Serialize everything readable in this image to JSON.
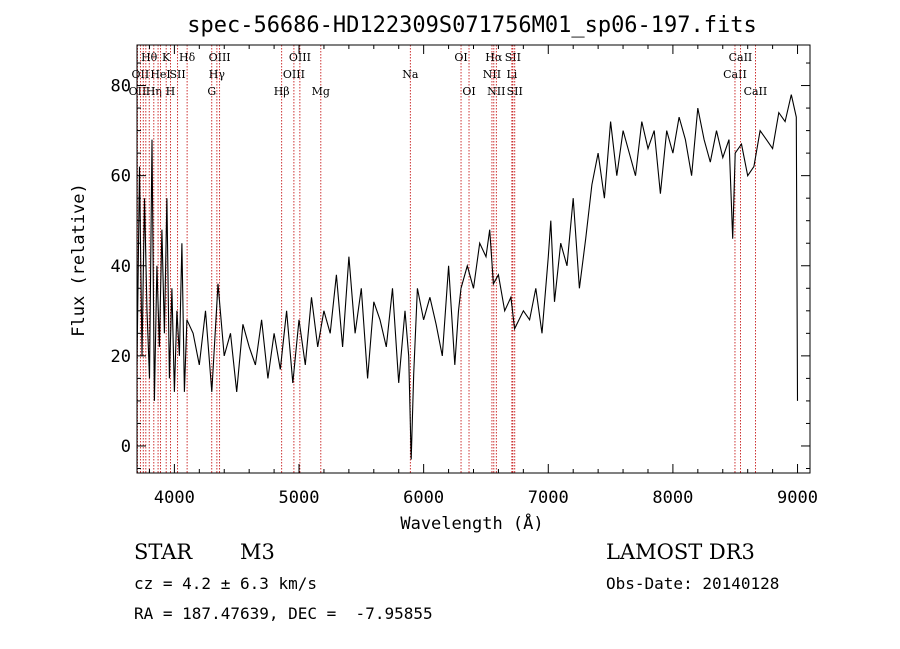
{
  "chart_data": {
    "type": "line",
    "title": "spec-56686-HD122309S071756M01_sp06-197.fits",
    "xlabel": "Wavelength (Å)",
    "ylabel": "Flux (relative)",
    "xlim": [
      3700,
      9100
    ],
    "ylim": [
      -6,
      89
    ],
    "xticks": [
      4000,
      5000,
      6000,
      7000,
      8000,
      9000
    ],
    "yticks": [
      0,
      20,
      40,
      60,
      80
    ],
    "line_color": "#000000",
    "marker_color": "#c00000",
    "series": [
      {
        "x": [
          3700,
          3720,
          3740,
          3760,
          3780,
          3800,
          3820,
          3840,
          3860,
          3880,
          3900,
          3920,
          3940,
          3960,
          3980,
          4000,
          4020,
          4040,
          4060,
          4080,
          4100,
          4150,
          4200,
          4250,
          4300,
          4350,
          4400,
          4450,
          4500,
          4550,
          4600,
          4650,
          4700,
          4750,
          4800,
          4850,
          4900,
          4950,
          5000,
          5050,
          5100,
          5150,
          5200,
          5250,
          5300,
          5350,
          5400,
          5450,
          5500,
          5550,
          5600,
          5650,
          5700,
          5750,
          5800,
          5850,
          5880,
          5900,
          5920,
          5950,
          6000,
          6050,
          6100,
          6150,
          6200,
          6250,
          6280,
          6300,
          6350,
          6400,
          6450,
          6500,
          6530,
          6560,
          6600,
          6650,
          6700,
          6730,
          6800,
          6850,
          6900,
          6950,
          7000,
          7020,
          7050,
          7100,
          7150,
          7200,
          7250,
          7300,
          7350,
          7400,
          7450,
          7500,
          7550,
          7600,
          7650,
          7700,
          7750,
          7800,
          7850,
          7900,
          7950,
          8000,
          8050,
          8100,
          8150,
          8200,
          8250,
          8300,
          8350,
          8400,
          8450,
          8480,
          8500,
          8550,
          8600,
          8650,
          8700,
          8750,
          8800,
          8850,
          8900,
          8950,
          8990,
          9000
        ],
        "y": [
          18,
          62,
          20,
          55,
          30,
          15,
          68,
          10,
          40,
          22,
          48,
          25,
          55,
          15,
          35,
          12,
          30,
          20,
          45,
          12,
          28,
          25,
          18,
          30,
          12,
          36,
          20,
          25,
          12,
          27,
          22,
          18,
          28,
          15,
          25,
          17,
          30,
          14,
          28,
          18,
          33,
          22,
          30,
          25,
          38,
          22,
          42,
          25,
          35,
          15,
          32,
          28,
          22,
          35,
          14,
          30,
          20,
          -3,
          16,
          35,
          28,
          33,
          27,
          20,
          40,
          18,
          30,
          35,
          40,
          35,
          45,
          42,
          48,
          36,
          38,
          30,
          33,
          26,
          30,
          28,
          35,
          25,
          42,
          50,
          32,
          45,
          40,
          55,
          35,
          46,
          58,
          65,
          55,
          72,
          60,
          70,
          65,
          60,
          72,
          66,
          70,
          56,
          70,
          65,
          73,
          68,
          60,
          75,
          68,
          63,
          70,
          64,
          68,
          46,
          65,
          67,
          60,
          62,
          70,
          68,
          66,
          74,
          72,
          78,
          73,
          10
        ]
      }
    ],
    "line_markers": [
      {
        "x": 3704,
        "label": "OII",
        "row": 2
      },
      {
        "x": 3727,
        "label": "OII",
        "row": 1
      },
      {
        "x": 3750,
        "label": "",
        "row": 0
      },
      {
        "x": 3771,
        "label": "",
        "row": 0
      },
      {
        "x": 3798,
        "label": "Hθ",
        "row": 0
      },
      {
        "x": 3835,
        "label": "Hη",
        "row": 2
      },
      {
        "x": 3869,
        "label": "",
        "row": 0
      },
      {
        "x": 3889,
        "label": "HeI",
        "row": 1
      },
      {
        "x": 3934,
        "label": "K",
        "row": 0
      },
      {
        "x": 3968,
        "label": "H",
        "row": 2
      },
      {
        "x": 4026,
        "label": "SII",
        "row": 1
      },
      {
        "x": 4102,
        "label": "Hδ",
        "row": 0
      },
      {
        "x": 4300,
        "label": "G",
        "row": 2
      },
      {
        "x": 4341,
        "label": "Hγ",
        "row": 1
      },
      {
        "x": 4363,
        "label": "OIII",
        "row": 0
      },
      {
        "x": 4861,
        "label": "Hβ",
        "row": 2
      },
      {
        "x": 4959,
        "label": "OIII",
        "row": 1
      },
      {
        "x": 5007,
        "label": "OIII",
        "row": 0
      },
      {
        "x": 5175,
        "label": "Mg",
        "row": 2
      },
      {
        "x": 5893,
        "label": "Na",
        "row": 1
      },
      {
        "x": 6300,
        "label": "OI",
        "row": 0
      },
      {
        "x": 6364,
        "label": "OI",
        "row": 2
      },
      {
        "x": 6548,
        "label": "NII",
        "row": 1
      },
      {
        "x": 6563,
        "label": "Hα",
        "row": 0
      },
      {
        "x": 6583,
        "label": "NII",
        "row": 2
      },
      {
        "x": 6708,
        "label": "Li",
        "row": 1
      },
      {
        "x": 6716,
        "label": "SII",
        "row": 0
      },
      {
        "x": 6731,
        "label": "SII",
        "row": 2
      },
      {
        "x": 8498,
        "label": "CaII",
        "row": 1
      },
      {
        "x": 8542,
        "label": "CaII",
        "row": 0
      },
      {
        "x": 8662,
        "label": "CaII",
        "row": 2
      }
    ]
  },
  "info": {
    "class_label": "STAR",
    "subclass_label": "M3",
    "survey_label": "LAMOST DR3",
    "cz_text": "cz = 4.2 ± 6.3 km/s",
    "obs_date_text": "Obs-Date: 20140128",
    "coords_text": "RA = 187.47639, DEC =  -7.95855"
  }
}
